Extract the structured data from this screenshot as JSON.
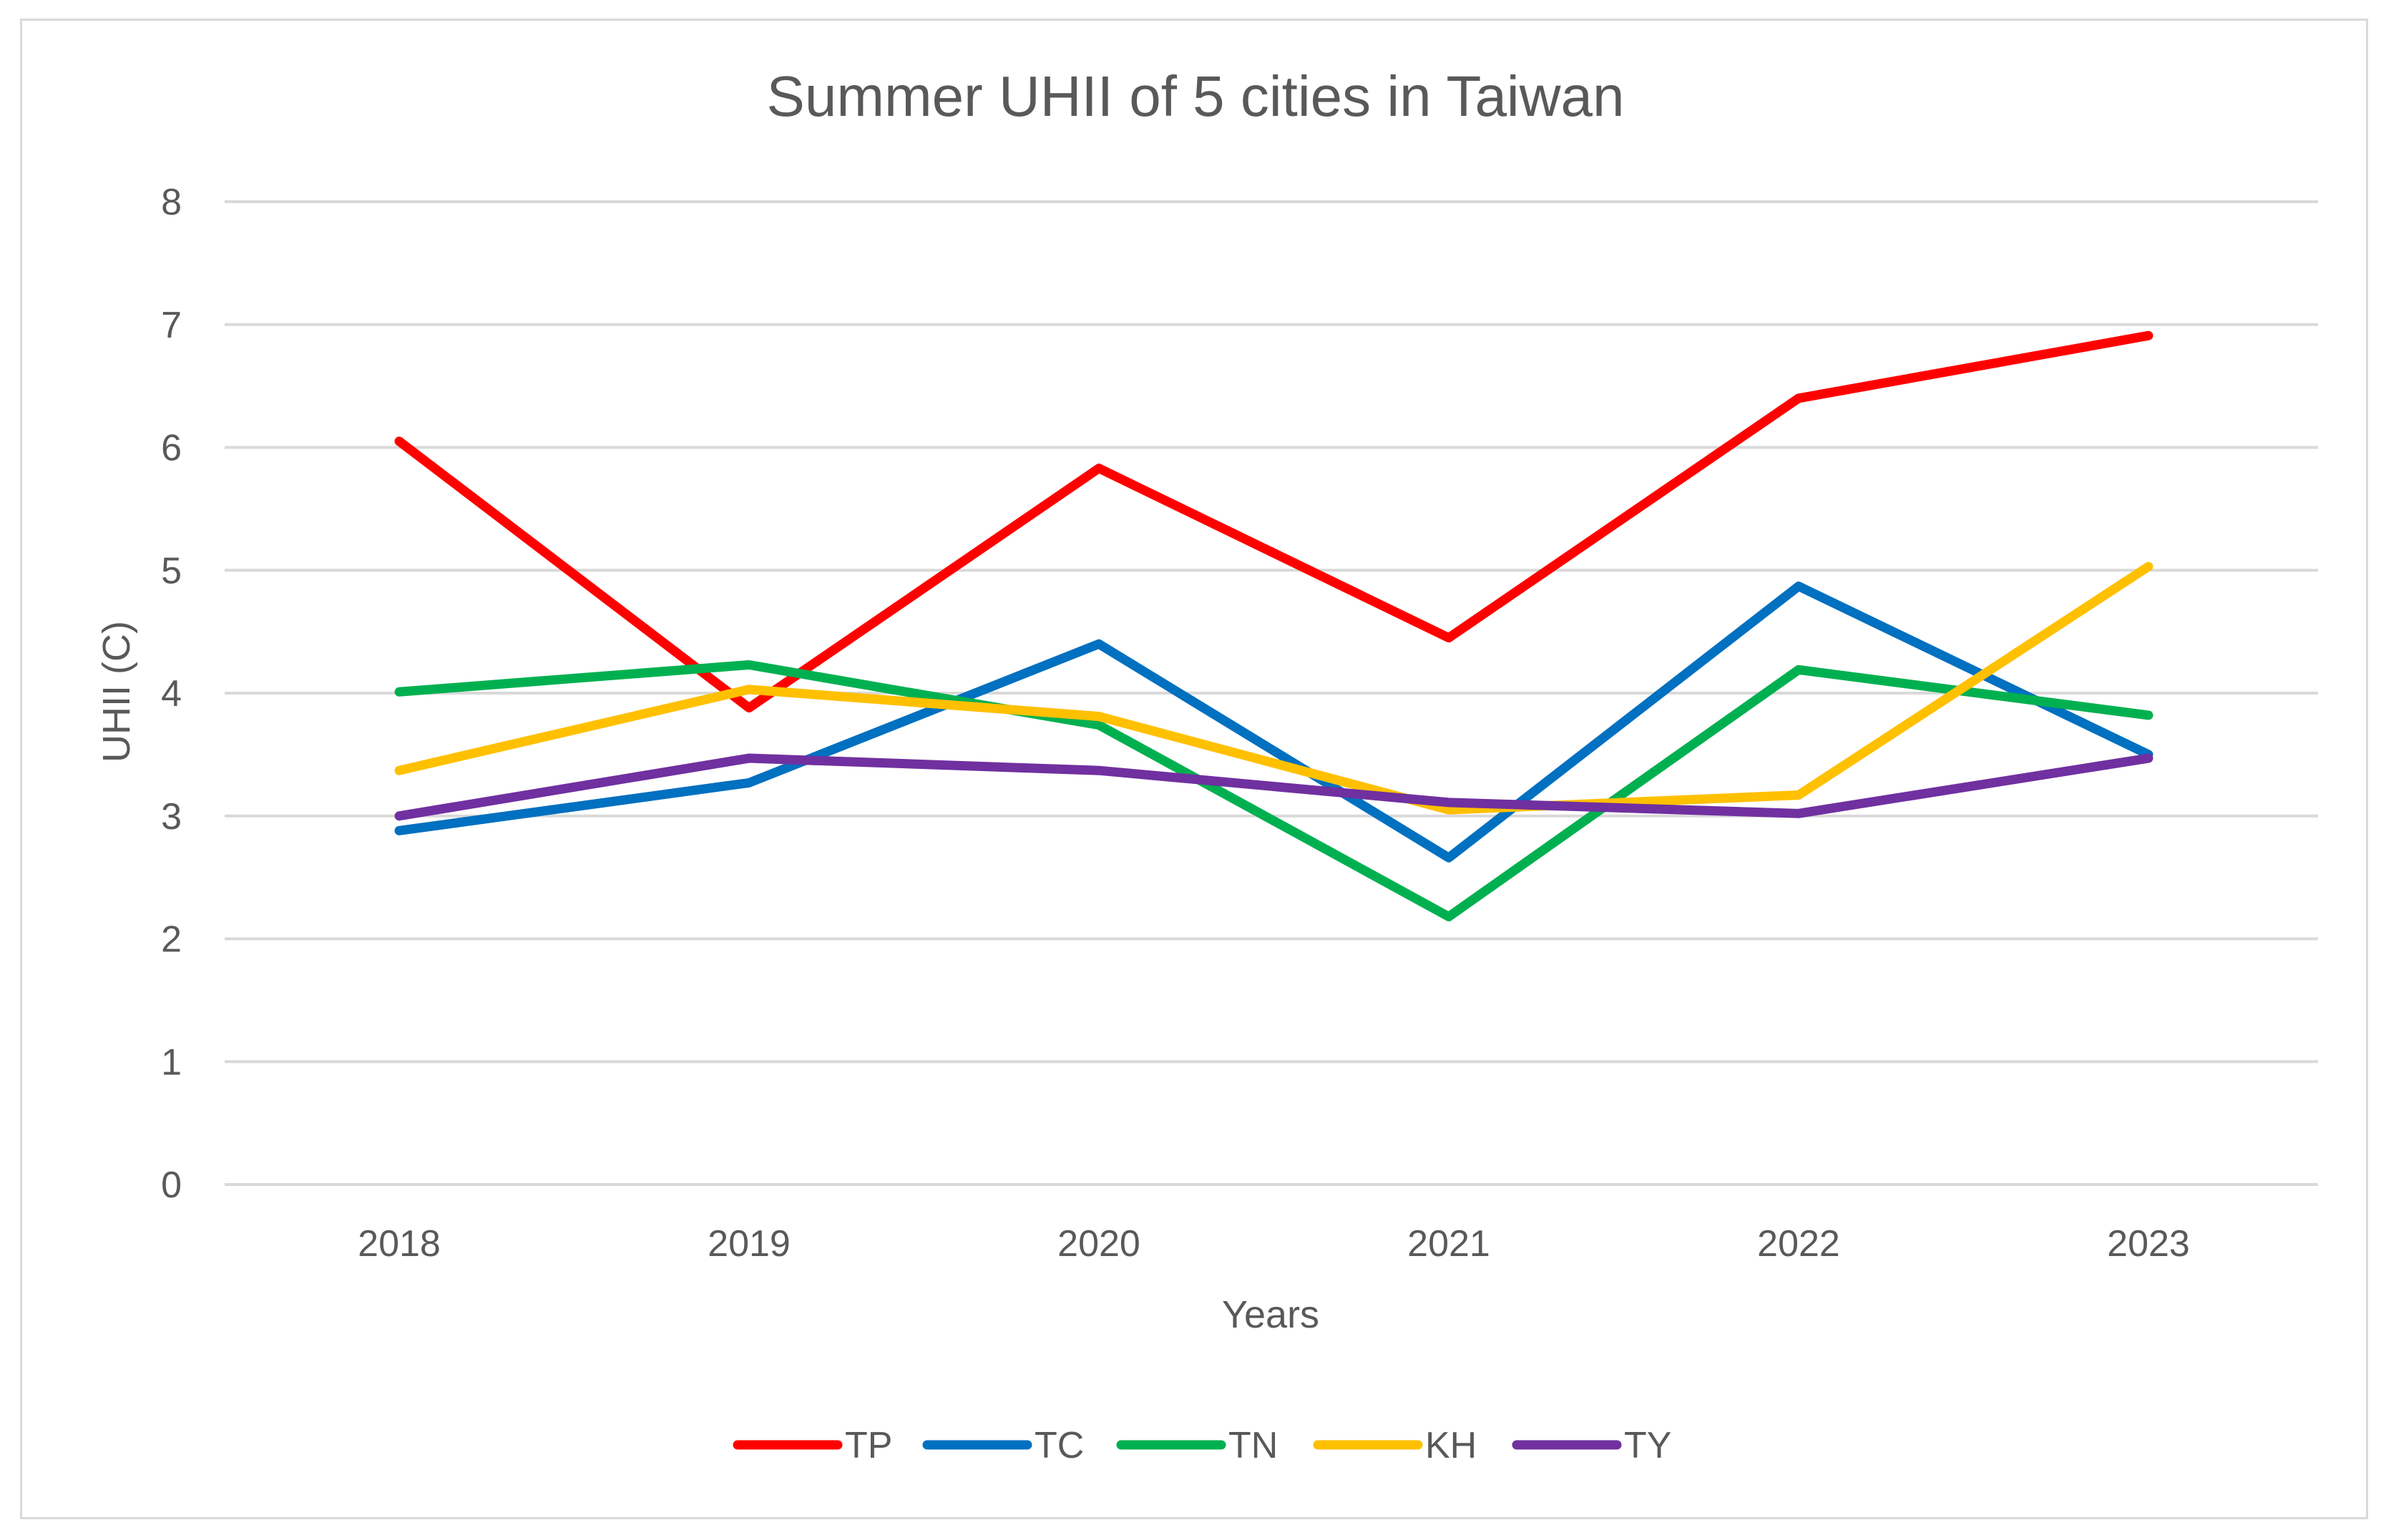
{
  "chart_data": {
    "type": "line",
    "title": "Summer UHII of 5 cities in Taiwan",
    "xlabel": "Years",
    "ylabel": "UHII (C)",
    "categories": [
      "2018",
      "2019",
      "2020",
      "2021",
      "2022",
      "2023"
    ],
    "ylim": [
      0,
      8
    ],
    "yticks": [
      0,
      1,
      2,
      3,
      4,
      5,
      6,
      7,
      8
    ],
    "grid": true,
    "legend_position": "bottom",
    "series": [
      {
        "name": "TP",
        "color": "#ff0000",
        "values": [
          6.05,
          3.88,
          5.83,
          4.45,
          6.4,
          6.91
        ]
      },
      {
        "name": "TC",
        "color": "#0070c0",
        "values": [
          2.88,
          3.27,
          4.4,
          2.66,
          4.87,
          3.5
        ]
      },
      {
        "name": "TN",
        "color": "#00b050",
        "values": [
          4.01,
          4.23,
          3.74,
          2.18,
          4.19,
          3.82
        ]
      },
      {
        "name": "KH",
        "color": "#ffc000",
        "values": [
          3.37,
          4.03,
          3.81,
          3.05,
          3.17,
          5.03
        ]
      },
      {
        "name": "TY",
        "color": "#7030a0",
        "values": [
          3.0,
          3.47,
          3.37,
          3.11,
          3.02,
          3.47
        ]
      }
    ]
  }
}
